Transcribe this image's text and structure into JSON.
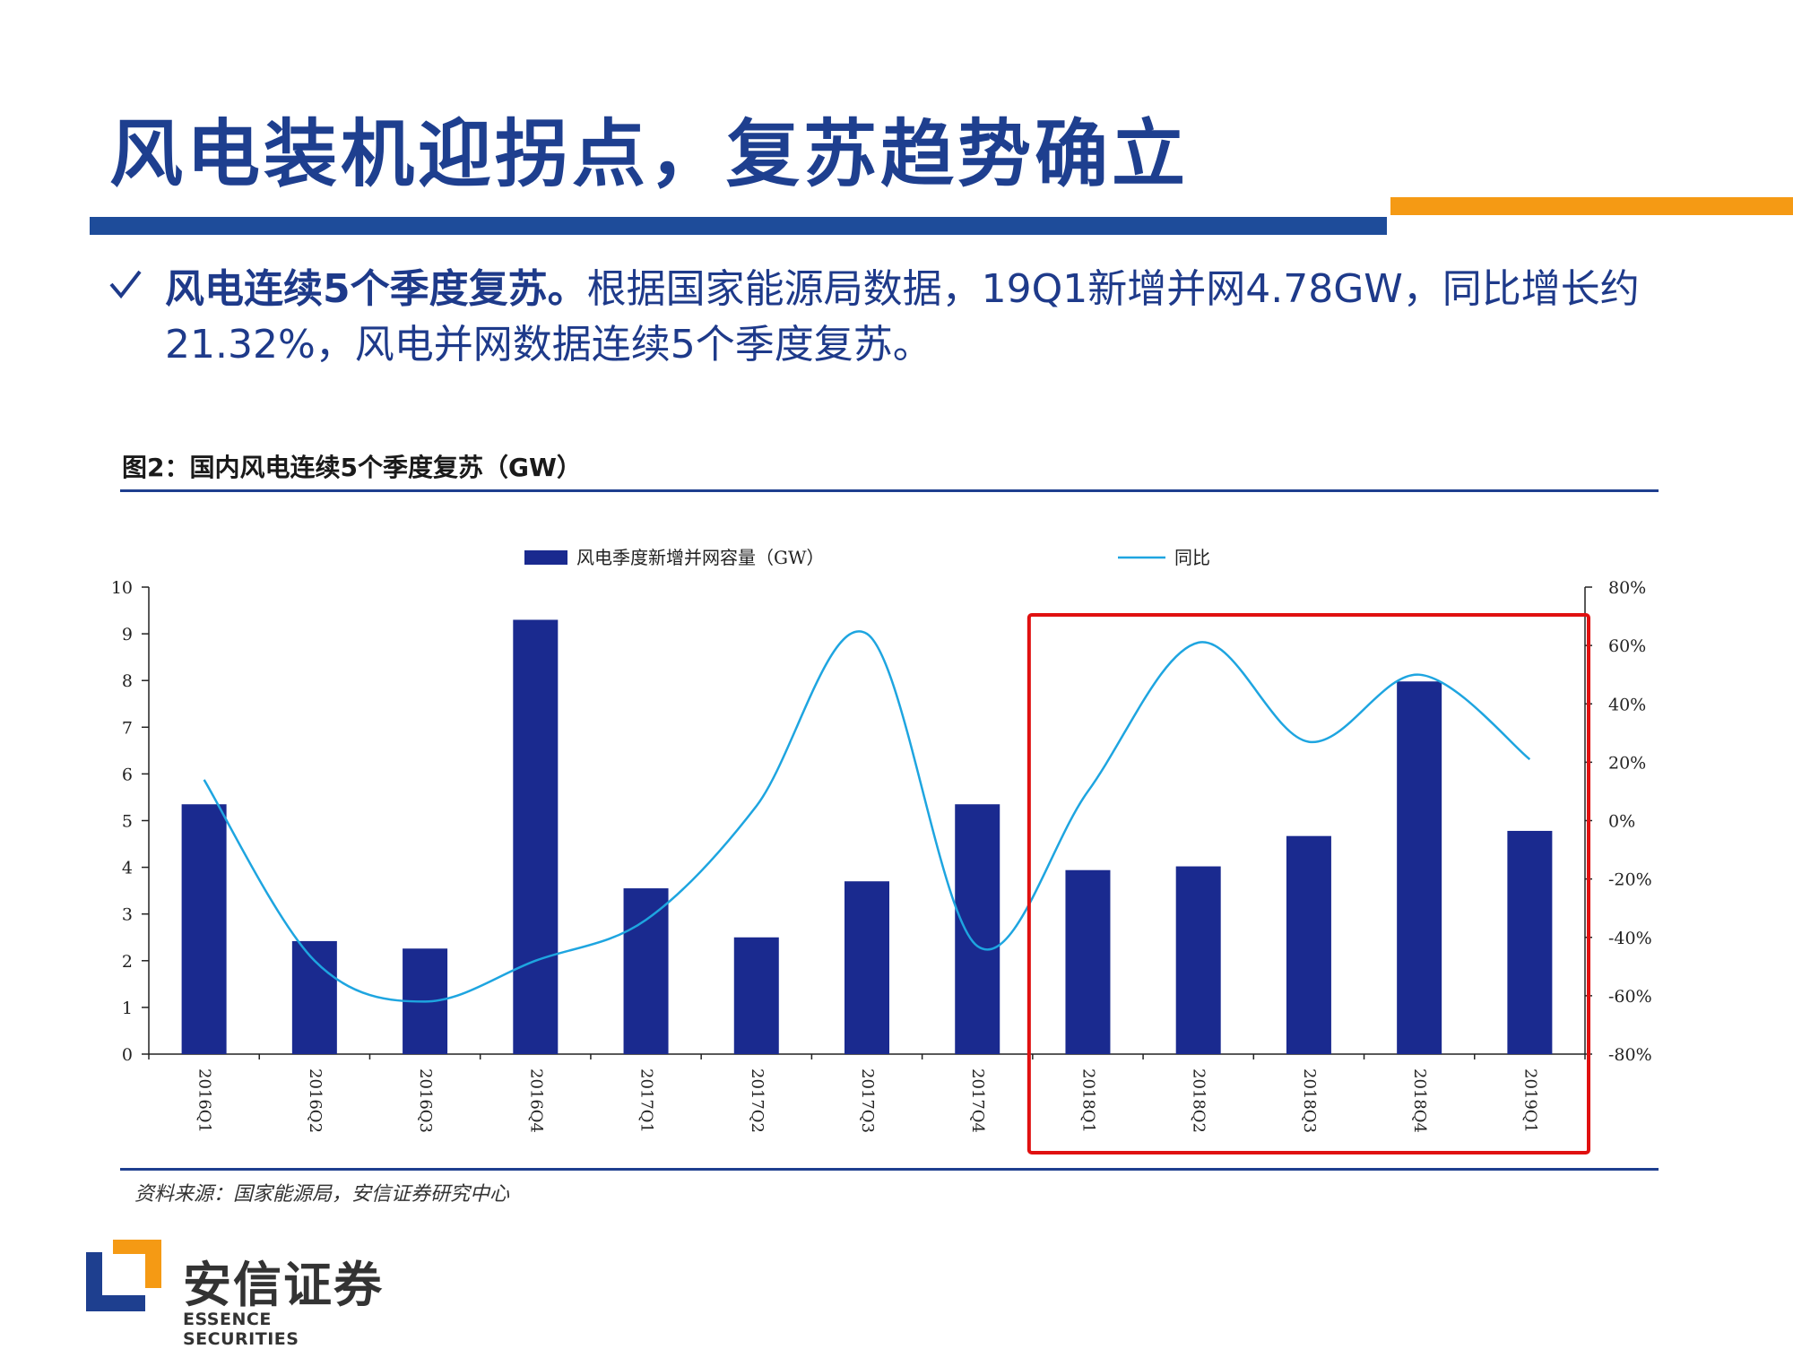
{
  "slide": {
    "title": "风电装机迎拐点，复苏趋势确立",
    "bullet_bold": "风电连续5个季度复苏。",
    "bullet_text": "根据国家能源局数据，19Q1新增并网4.78GW，同比增长约21.32%，风电并网数据连续5个季度复苏。",
    "figure_title": "图2：国内风电连续5个季度复苏（GW）",
    "source": "资料来源：国家能源局，安信证券研究中心",
    "check_icon": "checkmark-icon"
  },
  "logo": {
    "name_cn": "安信证券",
    "name_en": "ESSENCE SECURITIES"
  },
  "colors": {
    "title": "#1e3f8f",
    "accent_blue": "#1e4c9a",
    "accent_orange": "#f59a14",
    "bar": "#1a2a8f",
    "line": "#1ea5e0",
    "highlight_box": "#e01010"
  },
  "chart_data": {
    "type": "bar",
    "categories": [
      "2016Q1",
      "2016Q2",
      "2016Q3",
      "2016Q4",
      "2017Q1",
      "2017Q2",
      "2017Q3",
      "2017Q4",
      "2018Q1",
      "2018Q2",
      "2018Q3",
      "2018Q4",
      "2019Q1"
    ],
    "series": [
      {
        "name": "风电季度新增并网容量（GW）",
        "type": "bar",
        "axis": "left",
        "values": [
          5.35,
          2.42,
          2.26,
          9.3,
          3.55,
          2.5,
          3.7,
          5.35,
          3.94,
          4.02,
          4.67,
          7.98,
          4.78
        ]
      },
      {
        "name": "同比",
        "type": "line",
        "axis": "right",
        "values": [
          0.14,
          -0.48,
          -0.62,
          -0.48,
          -0.34,
          0.05,
          0.64,
          -0.43,
          0.1,
          0.61,
          0.27,
          0.5,
          0.21
        ]
      }
    ],
    "ylim": [
      0,
      10
    ],
    "y2lim": [
      -0.8,
      0.8
    ],
    "yticks": [
      "0",
      "1",
      "2",
      "3",
      "4",
      "5",
      "6",
      "7",
      "8",
      "9",
      "10"
    ],
    "y2ticks": [
      "-80%",
      "-60%",
      "-40%",
      "-20%",
      "0%",
      "20%",
      "40%",
      "60%",
      "80%"
    ],
    "legend_position": "top",
    "grid": false,
    "highlight": {
      "from": "2018Q1",
      "to": "2019Q1"
    }
  }
}
